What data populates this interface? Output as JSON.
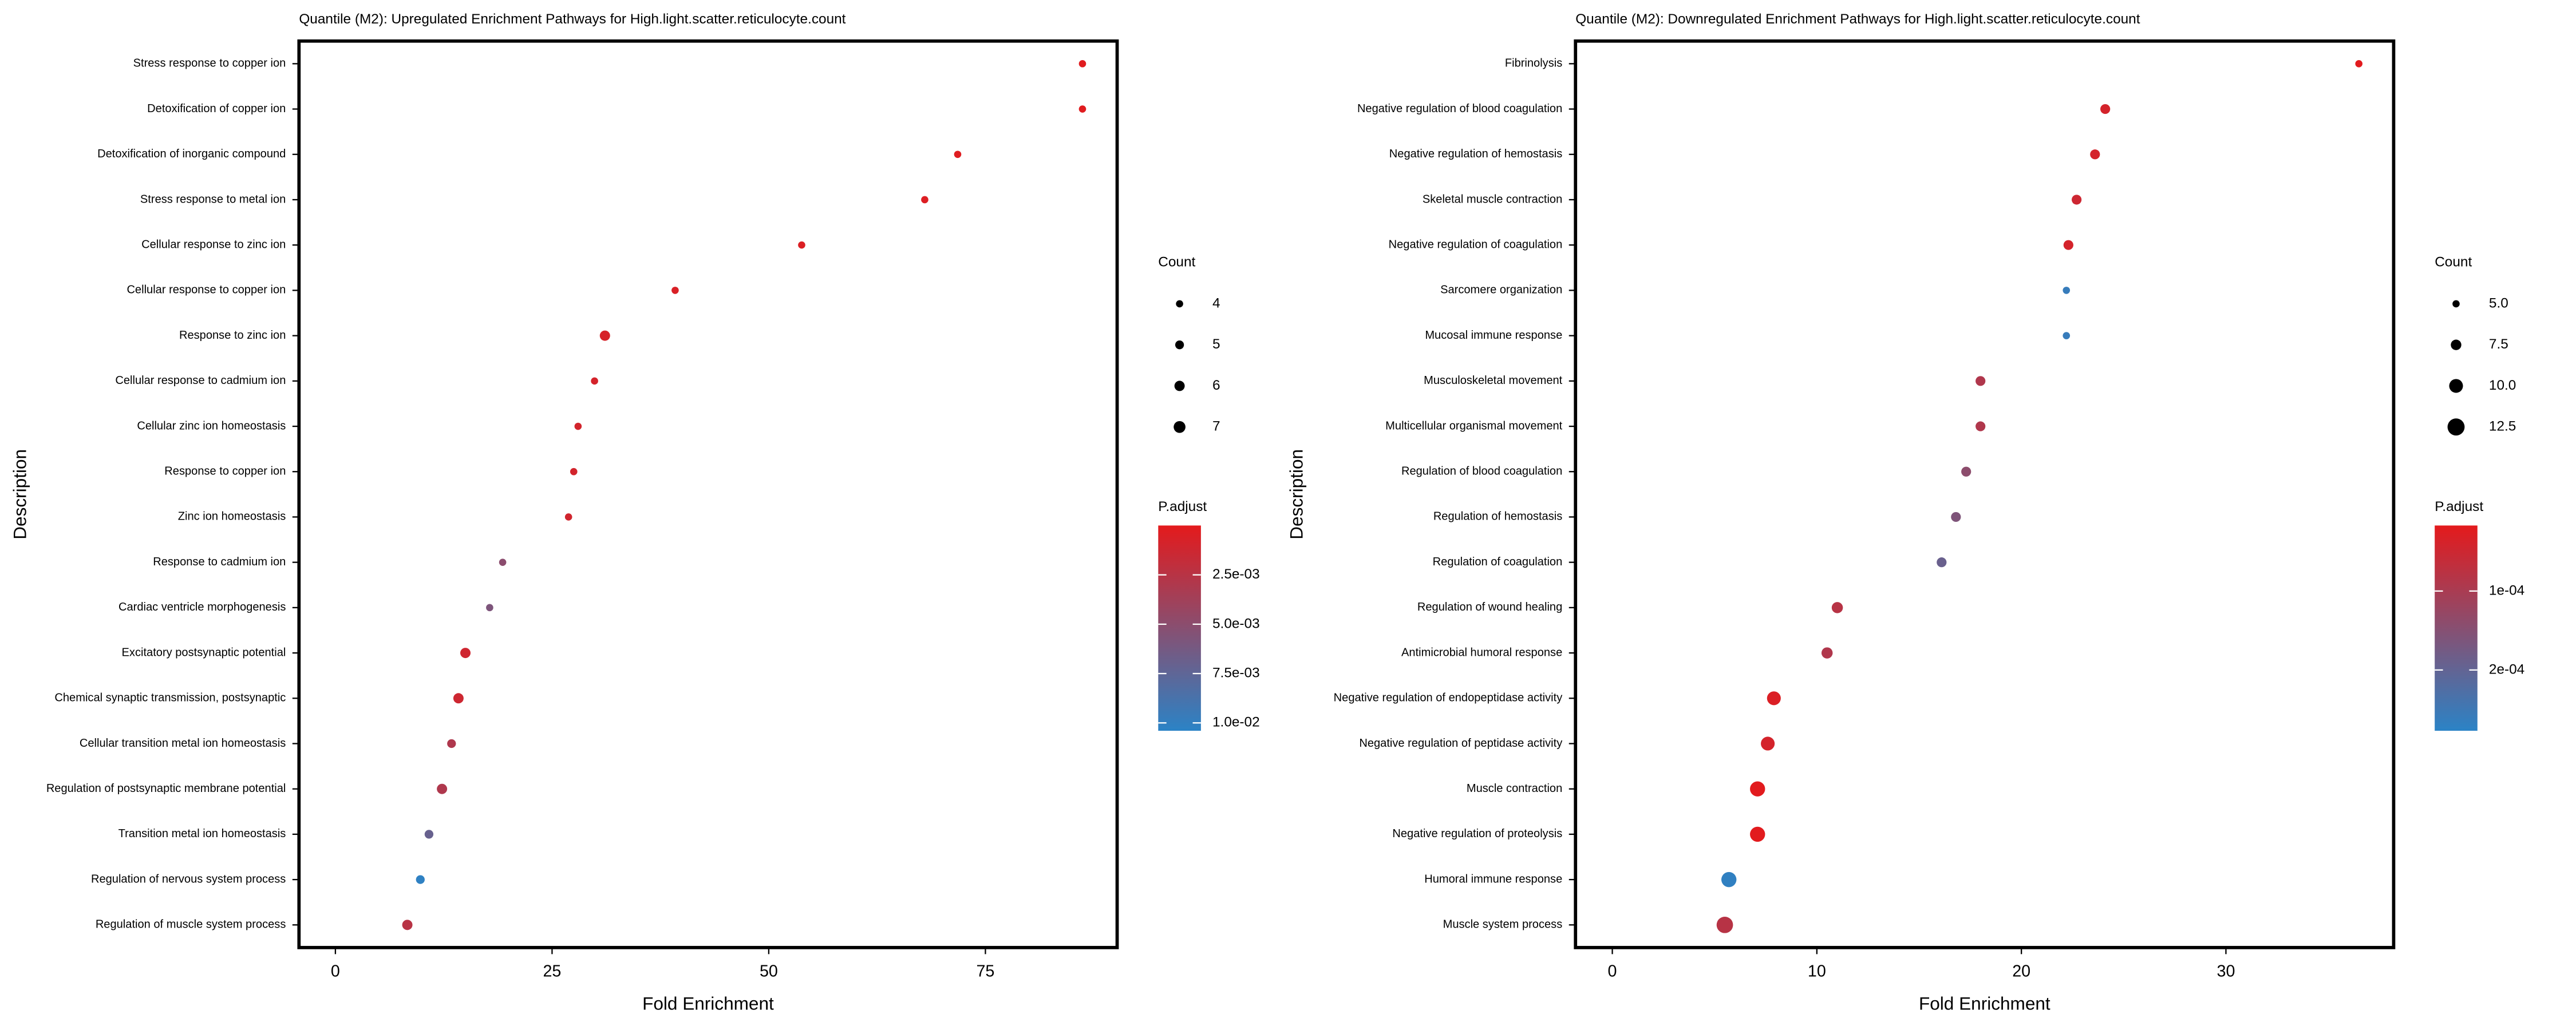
{
  "chart_data": [
    {
      "type": "scatter",
      "title": "Quantile (M2): Upregulated Enrichment Pathways for High.light.scatter.reticulocyte.count",
      "xlabel": "Fold Enrichment",
      "ylabel": "Description",
      "categories": [
        "Stress response to copper ion",
        "Detoxification of copper ion",
        "Detoxification of inorganic compound",
        "Stress response to metal ion",
        "Cellular response to zinc ion",
        "Cellular response to copper ion",
        "Response to zinc ion",
        "Cellular response to cadmium ion",
        "Cellular zinc ion homeostasis",
        "Response to copper ion",
        "Zinc ion homeostasis",
        "Response to cadmium ion",
        "Cardiac ventricle morphogenesis",
        "Excitatory postsynaptic potential",
        "Chemical synaptic transmission, postsynaptic",
        "Cellular transition metal ion homeostasis",
        "Regulation of postsynaptic membrane potential",
        "Transition metal ion homeostasis",
        "Regulation of nervous system process",
        "Regulation of muscle system process"
      ],
      "values": [
        86.2,
        86.2,
        71.8,
        68.0,
        53.8,
        39.2,
        31.1,
        29.9,
        28.0,
        27.5,
        26.9,
        19.3,
        17.8,
        15.0,
        14.2,
        13.4,
        12.3,
        10.8,
        9.8,
        8.3
      ],
      "sizes": [
        4,
        4,
        4,
        4,
        4,
        4,
        6,
        4,
        4,
        4,
        4,
        4,
        4,
        6,
        6,
        5,
        6,
        5,
        5,
        6
      ],
      "padj": [
        0.0002,
        0.0002,
        0.0003,
        0.0004,
        0.0005,
        0.0006,
        0.0008,
        0.0009,
        0.001,
        0.001,
        0.0011,
        0.005,
        0.0058,
        0.0012,
        0.0013,
        0.003,
        0.003,
        0.007,
        0.0102,
        0.0025
      ],
      "xlim": [
        -4.2,
        90.2
      ],
      "xticks": [
        0,
        25,
        50,
        75
      ],
      "size_legend": {
        "title": "Count",
        "ticks": [
          4,
          5,
          6,
          7
        ]
      },
      "color_legend": {
        "title": "P.adjust",
        "lim": [
          0.0,
          0.0104
        ],
        "colors": [
          "#e41a1c",
          "#2b83c6"
        ],
        "ticks": [
          {
            "value": 0.0025,
            "label": "2.5e-03"
          },
          {
            "value": 0.005,
            "label": "5.0e-03"
          },
          {
            "value": 0.0075,
            "label": "7.5e-03"
          },
          {
            "value": 0.01,
            "label": "1.0e-02"
          }
        ]
      }
    },
    {
      "type": "scatter",
      "title": "Quantile (M2): Downregulated Enrichment Pathways for High.light.scatter.reticulocyte.count",
      "xlabel": "Fold Enrichment",
      "ylabel": "Description",
      "categories": [
        "Fibrinolysis",
        "Negative regulation of blood coagulation",
        "Negative regulation of hemostasis",
        "Skeletal muscle contraction",
        "Negative regulation of coagulation",
        "Sarcomere organization",
        "Mucosal immune response",
        "Musculoskeletal movement",
        "Multicellular organismal movement",
        "Regulation of blood coagulation",
        "Regulation of hemostasis",
        "Regulation of coagulation",
        "Regulation of wound healing",
        "Antimicrobial humoral response",
        "Negative regulation of endopeptidase activity",
        "Negative regulation of peptidase activity",
        "Muscle contraction",
        "Negative regulation of proteolysis",
        "Humoral immune response",
        "Muscle system process"
      ],
      "values": [
        36.5,
        24.1,
        23.6,
        22.7,
        22.3,
        22.2,
        22.2,
        18.0,
        18.0,
        17.3,
        16.8,
        16.1,
        11.0,
        10.5,
        7.9,
        7.6,
        7.1,
        7.1,
        5.7,
        5.5
      ],
      "sizes": [
        5,
        7,
        7,
        7,
        7,
        5,
        5,
        7,
        7,
        7,
        7,
        7,
        8,
        8,
        10,
        10,
        11,
        11,
        11,
        12
      ],
      "padj": [
        2e-05,
        4e-05,
        4e-05,
        5e-05,
        4e-05,
        0.00026,
        0.00026,
        9e-05,
        9e-05,
        0.00014,
        0.00016,
        0.00019,
        8e-05,
        9e-05,
        3e-05,
        4e-05,
        2e-05,
        2e-05,
        0.00027,
        8e-05
      ],
      "xlim": [
        -1.8,
        38.2
      ],
      "xticks": [
        0,
        10,
        20,
        30
      ],
      "size_legend": {
        "title": "Count",
        "ticks": [
          {
            "value": 5,
            "label": "5.0"
          },
          7.5,
          {
            "value": 10,
            "label": "10.0"
          },
          12.5
        ]
      },
      "color_legend": {
        "title": "P.adjust",
        "lim": [
          1.7e-05,
          0.000277
        ],
        "colors": [
          "#e41a1c",
          "#2b83c6"
        ],
        "ticks": [
          {
            "value": 0.0001,
            "label": "1e-04"
          },
          {
            "value": 0.0002,
            "label": "2e-04"
          }
        ]
      }
    }
  ]
}
